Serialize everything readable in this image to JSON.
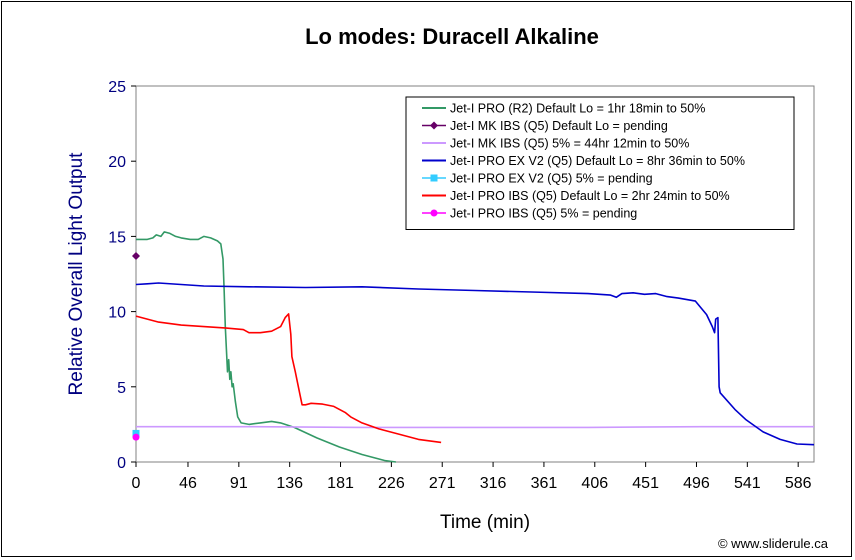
{
  "chart_data": {
    "type": "line",
    "title": "Lo modes: Duracell Alkaline",
    "xlabel": "Time (min)",
    "ylabel": "Relative Overall Light Output",
    "xlim": [
      0,
      600
    ],
    "ylim": [
      0,
      25
    ],
    "x_ticks": [
      "0",
      "46",
      "91",
      "136",
      "181",
      "226",
      "271",
      "316",
      "361",
      "406",
      "451",
      "496",
      "541",
      "586"
    ],
    "x_tick_values": [
      0,
      46,
      91,
      136,
      181,
      226,
      271,
      316,
      361,
      406,
      451,
      496,
      541,
      586
    ],
    "y_ticks": [
      "0",
      "5",
      "10",
      "15",
      "20",
      "25"
    ],
    "y_tick_values": [
      0,
      5,
      10,
      15,
      20,
      25
    ],
    "axis_color": "#000080",
    "grid": false,
    "legend_position": "top-right",
    "credit": "© www.sliderule.ca",
    "series": [
      {
        "name": "Jet-I PRO (R2) Default Lo = 1hr 18min to 50%",
        "color": "#339966",
        "marker": "none",
        "points": [
          [
            0,
            14.8
          ],
          [
            10,
            14.8
          ],
          [
            15,
            14.9
          ],
          [
            18,
            15.1
          ],
          [
            22,
            15.0
          ],
          [
            25,
            15.3
          ],
          [
            30,
            15.2
          ],
          [
            35,
            15.0
          ],
          [
            40,
            14.9
          ],
          [
            48,
            14.8
          ],
          [
            55,
            14.8
          ],
          [
            60,
            15.0
          ],
          [
            66,
            14.9
          ],
          [
            72,
            14.7
          ],
          [
            75,
            14.5
          ],
          [
            77,
            13.5
          ],
          [
            78,
            11.5
          ],
          [
            79,
            9.0
          ],
          [
            80,
            7.5
          ],
          [
            81,
            6.0
          ],
          [
            82,
            6.8
          ],
          [
            83,
            5.5
          ],
          [
            84,
            6.0
          ],
          [
            85,
            5.0
          ],
          [
            86,
            5.2
          ],
          [
            88,
            4.0
          ],
          [
            90,
            3.0
          ],
          [
            93,
            2.6
          ],
          [
            100,
            2.5
          ],
          [
            110,
            2.6
          ],
          [
            120,
            2.7
          ],
          [
            128,
            2.6
          ],
          [
            140,
            2.3
          ],
          [
            160,
            1.6
          ],
          [
            180,
            1.0
          ],
          [
            200,
            0.5
          ],
          [
            220,
            0.1
          ],
          [
            230,
            0.0
          ]
        ]
      },
      {
        "name": "Jet-I MK IBS (Q5) Default Lo = pending",
        "color": "#660066",
        "marker": "diamond",
        "points": [
          [
            0,
            13.7
          ]
        ]
      },
      {
        "name": "Jet-I MK IBS (Q5) 5% = 44hr 12min to 50%",
        "color": "#cc99ff",
        "marker": "none",
        "points": [
          [
            0,
            2.35
          ],
          [
            100,
            2.35
          ],
          [
            200,
            2.3
          ],
          [
            300,
            2.3
          ],
          [
            400,
            2.3
          ],
          [
            500,
            2.35
          ],
          [
            600,
            2.35
          ]
        ]
      },
      {
        "name": "Jet-I PRO EX V2 (Q5) Default Lo = 8hr 36min to 50%",
        "color": "#0000cc",
        "marker": "none",
        "points": [
          [
            0,
            11.8
          ],
          [
            10,
            11.85
          ],
          [
            20,
            11.9
          ],
          [
            40,
            11.8
          ],
          [
            60,
            11.7
          ],
          [
            100,
            11.65
          ],
          [
            150,
            11.6
          ],
          [
            200,
            11.65
          ],
          [
            250,
            11.5
          ],
          [
            300,
            11.4
          ],
          [
            350,
            11.3
          ],
          [
            400,
            11.2
          ],
          [
            420,
            11.1
          ],
          [
            425,
            10.95
          ],
          [
            430,
            11.2
          ],
          [
            440,
            11.25
          ],
          [
            450,
            11.15
          ],
          [
            460,
            11.2
          ],
          [
            470,
            11.0
          ],
          [
            480,
            10.9
          ],
          [
            495,
            10.7
          ],
          [
            505,
            9.8
          ],
          [
            510,
            9.0
          ],
          [
            512,
            8.6
          ],
          [
            513,
            9.5
          ],
          [
            515,
            9.6
          ],
          [
            516,
            5.0
          ],
          [
            517,
            4.6
          ],
          [
            530,
            3.5
          ],
          [
            540,
            2.8
          ],
          [
            555,
            2.0
          ],
          [
            570,
            1.5
          ],
          [
            585,
            1.2
          ],
          [
            600,
            1.15
          ]
        ]
      },
      {
        "name": "Jet-I PRO EX V2 (Q5) 5% = pending",
        "color": "#33ccff",
        "marker": "square",
        "points": [
          [
            0,
            1.9
          ]
        ]
      },
      {
        "name": "Jet-I PRO IBS (Q5) Default Lo = 2hr 24min to 50%",
        "color": "#ff0000",
        "marker": "none",
        "points": [
          [
            0,
            9.7
          ],
          [
            10,
            9.5
          ],
          [
            20,
            9.3
          ],
          [
            40,
            9.1
          ],
          [
            60,
            9.0
          ],
          [
            80,
            8.9
          ],
          [
            95,
            8.8
          ],
          [
            100,
            8.6
          ],
          [
            110,
            8.6
          ],
          [
            120,
            8.7
          ],
          [
            128,
            9.0
          ],
          [
            132,
            9.6
          ],
          [
            135,
            9.85
          ],
          [
            137,
            8.5
          ],
          [
            138,
            7.0
          ],
          [
            141,
            6.0
          ],
          [
            145,
            4.5
          ],
          [
            147,
            3.8
          ],
          [
            150,
            3.8
          ],
          [
            155,
            3.9
          ],
          [
            165,
            3.85
          ],
          [
            175,
            3.7
          ],
          [
            185,
            3.3
          ],
          [
            190,
            3.0
          ],
          [
            200,
            2.6
          ],
          [
            215,
            2.2
          ],
          [
            230,
            1.9
          ],
          [
            250,
            1.5
          ],
          [
            270,
            1.3
          ]
        ]
      },
      {
        "name": "Jet-I PRO IBS (Q5) 5% =  pending",
        "color": "#ff00ff",
        "marker": "circle",
        "points": [
          [
            0,
            1.65
          ]
        ]
      }
    ]
  }
}
